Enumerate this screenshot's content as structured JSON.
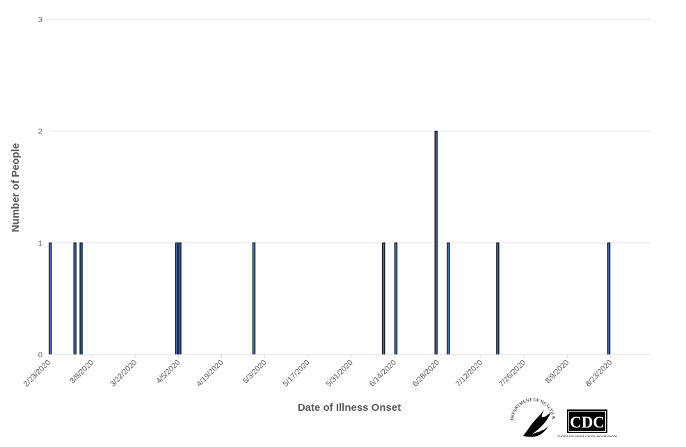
{
  "chart_data": {
    "type": "bar",
    "title": "",
    "xlabel": "Date of Illness Onset",
    "ylabel": "Number of People",
    "ylim": [
      0,
      3
    ],
    "yticks": [
      "0",
      "1",
      "2",
      "3"
    ],
    "xticks": [
      "2/23/2020",
      "3/8/2020",
      "3/22/2020",
      "4/5/2020",
      "4/19/2020",
      "5/3/2020",
      "5/17/2020",
      "5/31/2020",
      "6/14/2020",
      "6/28/2020",
      "7/12/2020",
      "7/26/2020",
      "8/9/2020",
      "8/23/2020"
    ],
    "x_axis_start": "2/23/2020",
    "x_axis_end": "9/5/2020",
    "grid": true,
    "bar_color": "#4472c4",
    "points": [
      {
        "date": "2/23/2020",
        "value": 1
      },
      {
        "date": "3/2/2020",
        "value": 1
      },
      {
        "date": "3/4/2020",
        "value": 1
      },
      {
        "date": "4/4/2020",
        "value": 1
      },
      {
        "date": "4/5/2020",
        "value": 1
      },
      {
        "date": "4/29/2020",
        "value": 1
      },
      {
        "date": "6/10/2020",
        "value": 1
      },
      {
        "date": "6/14/2020",
        "value": 1
      },
      {
        "date": "6/27/2020",
        "value": 2
      },
      {
        "date": "7/1/2020",
        "value": 1
      },
      {
        "date": "7/17/2020",
        "value": 1
      },
      {
        "date": "8/22/2020",
        "value": 1
      }
    ]
  },
  "logos": {
    "hhs": {
      "icon": "hhs-eagle-seal-icon",
      "text": "DEPARTMENT OF HEALTH & HUMAN SERVICES USA"
    },
    "cdc": {
      "icon": "cdc-logo-icon",
      "text": "CDC",
      "subtext": "CENTERS FOR DISEASE CONTROL AND PREVENTION"
    }
  }
}
